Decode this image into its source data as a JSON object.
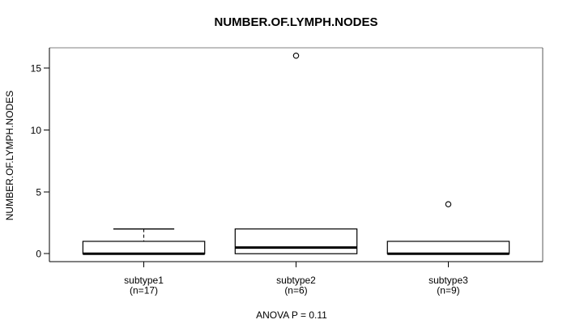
{
  "chart_data": {
    "type": "boxplot",
    "title": "NUMBER.OF.LYMPH.NODES",
    "ylabel": "NUMBER.OF.LYMPH.NODES",
    "xlabel": "",
    "annotation": "ANOVA P = 0.11",
    "ylim": [
      -0.64,
      16.64
    ],
    "yticks": [
      0,
      5,
      10,
      15
    ],
    "grid": false,
    "categories": [
      "subtype1",
      "subtype2",
      "subtype3"
    ],
    "groups": [
      {
        "label": "subtype1",
        "sublabel": "(n=17)",
        "n": 17,
        "whisker_low": 0,
        "q1": 0,
        "median": 0,
        "q3": 1,
        "whisker_high": 2,
        "outliers": []
      },
      {
        "label": "subtype2",
        "sublabel": "(n=6)",
        "n": 6,
        "whisker_low": 0,
        "q1": 0,
        "median": 0.5,
        "q3": 2,
        "whisker_high": 2,
        "outliers": [
          16
        ]
      },
      {
        "label": "subtype3",
        "sublabel": "(n=9)",
        "n": 9,
        "whisker_low": 0,
        "q1": 0,
        "median": 0,
        "q3": 1,
        "whisker_high": 1,
        "outliers": [
          4
        ]
      }
    ],
    "colors": {
      "background": "#ffffff",
      "text": "#000000",
      "line": "#000000",
      "box_fill": "#ffffff",
      "border_top": "#808080",
      "border_right": "#595959"
    }
  }
}
